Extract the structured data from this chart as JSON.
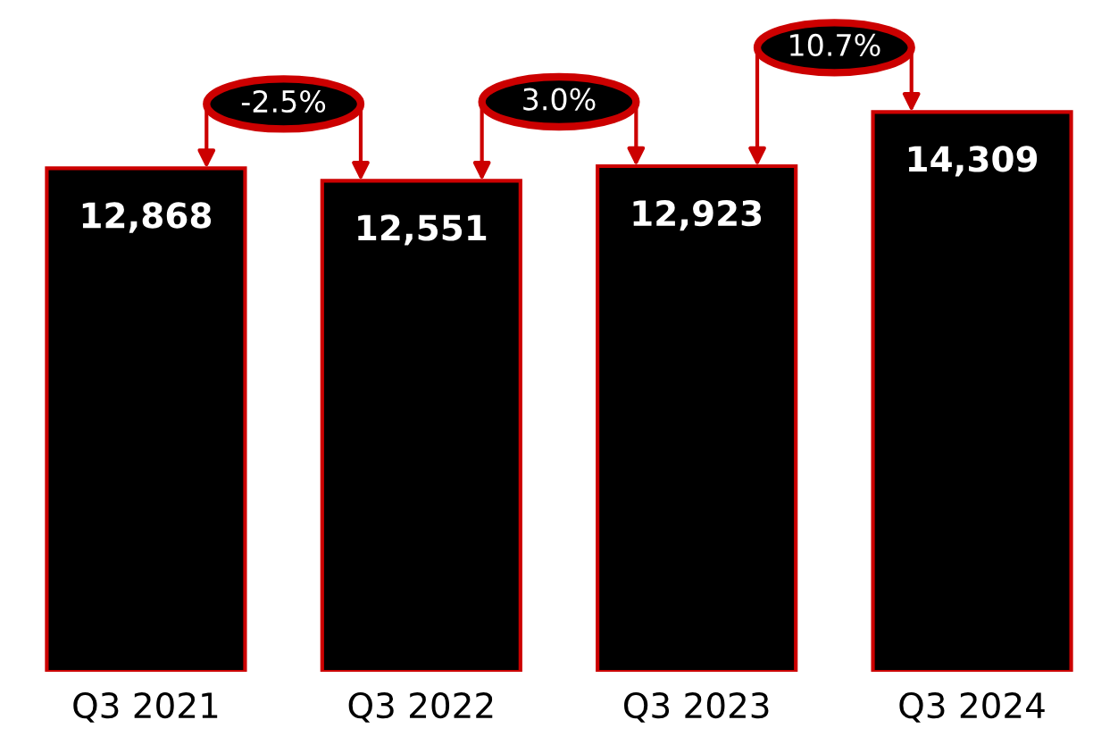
{
  "chart_data": {
    "type": "bar",
    "categories": [
      "Q3 2021",
      "Q3 2022",
      "Q3 2023",
      "Q3 2024"
    ],
    "values": [
      12868,
      12551,
      12923,
      14309
    ],
    "value_labels": [
      "12,868",
      "12,551",
      "12,923",
      "14,309"
    ],
    "color": "#000000",
    "tick_labels": "x",
    "annotations": [
      "-2.5%",
      "3.0%",
      "10.7%"
    ]
  }
}
